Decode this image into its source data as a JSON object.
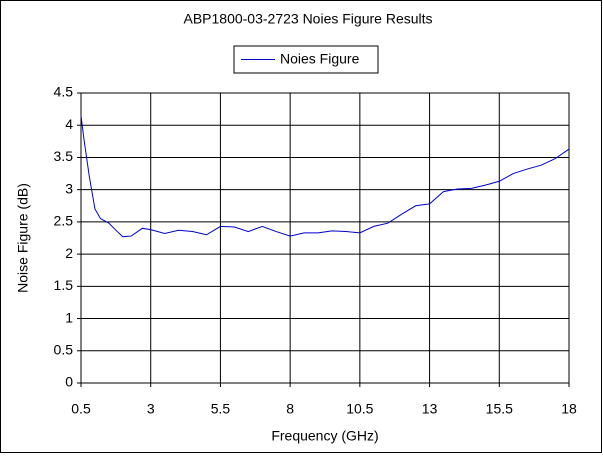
{
  "chart_data": {
    "type": "line",
    "title": "ABP1800-03-2723 Noies Figure Results",
    "x_label": "Frequency (GHz)",
    "y_label": "Noise Figure (dB)",
    "x": [
      0.5,
      0.6,
      0.8,
      1.0,
      1.2,
      1.5,
      1.8,
      2.0,
      2.3,
      2.7,
      3.0,
      3.5,
      4.0,
      4.5,
      5.0,
      5.5,
      6.0,
      6.5,
      7.0,
      7.5,
      8.0,
      8.5,
      9.0,
      9.5,
      10.0,
      10.5,
      11.0,
      11.5,
      12.0,
      12.5,
      13.0,
      13.5,
      14.0,
      14.5,
      15.0,
      15.5,
      16.0,
      16.5,
      17.0,
      17.5,
      18.0
    ],
    "series": [
      {
        "name": "Noies Figure",
        "color": "#0000cc",
        "values": [
          4.15,
          3.8,
          3.2,
          2.7,
          2.55,
          2.48,
          2.35,
          2.27,
          2.28,
          2.4,
          2.38,
          2.32,
          2.37,
          2.35,
          2.3,
          2.43,
          2.42,
          2.35,
          2.43,
          2.35,
          2.28,
          2.33,
          2.33,
          2.36,
          2.35,
          2.33,
          2.43,
          2.48,
          2.62,
          2.75,
          2.78,
          2.97,
          3.01,
          3.02,
          3.07,
          3.13,
          3.25,
          3.32,
          3.38,
          3.48,
          3.63
        ]
      }
    ],
    "xlim": [
      0.5,
      18
    ],
    "xticks": [
      0.5,
      3,
      5.5,
      8,
      10.5,
      13,
      15.5,
      18
    ],
    "ylim": [
      0,
      4.5
    ],
    "yticks": [
      0,
      0.5,
      1,
      1.5,
      2,
      2.5,
      3,
      3.5,
      4,
      4.5
    ],
    "grid": true
  }
}
